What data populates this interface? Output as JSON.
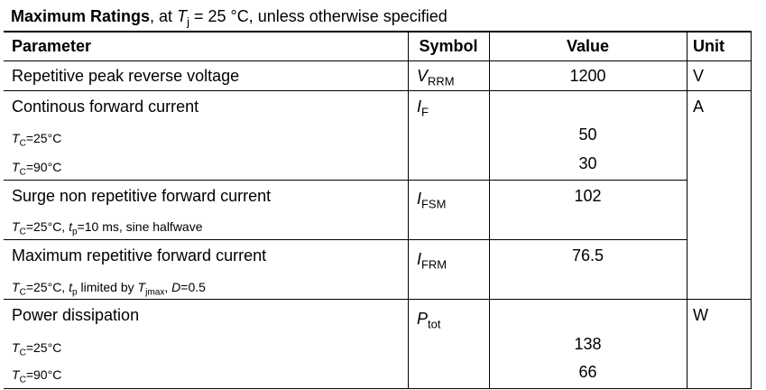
{
  "caption": {
    "bold": "Maximum Ratings",
    "comma": ",",
    "at": " at ",
    "tj_symbol": "T",
    "tj_sub": "j",
    "rest": " = 25 °C, unless otherwise specified"
  },
  "headers": {
    "parameter": "Parameter",
    "symbol": "Symbol",
    "value": "Value",
    "unit": "Unit"
  },
  "rows": [
    {
      "parameter": "Repetitive peak reverse voltage",
      "symbol": {
        "base": "V",
        "sub": "RRM"
      },
      "value": "1200",
      "unit": "V"
    },
    {
      "parameter": "Continous forward current",
      "symbol": {
        "base": "I",
        "sub": "F"
      },
      "unit": "A",
      "conditions": [
        {
          "t": "T",
          "sub": "C",
          "rest": "=25°C",
          "value": "50"
        },
        {
          "t": "T",
          "sub": "C",
          "rest": "=90°C",
          "value": "30"
        }
      ]
    },
    {
      "parameter": "Surge non repetitive forward current",
      "symbol": {
        "base": "I",
        "sub": "FSM"
      },
      "value": "102",
      "condition": {
        "t": "T",
        "sub": "C",
        "mid": "=25°C, ",
        "t2": "t",
        "sub2": "p",
        "rest": "=10 ms, sine halfwave"
      }
    },
    {
      "parameter": "Maximum repetitive forward current",
      "symbol": {
        "base": "I",
        "sub": "FRM"
      },
      "value": "76.5",
      "condition": {
        "t": "T",
        "sub": "C",
        "mid": "=25°C, ",
        "t2": "t",
        "sub2": "p",
        "mid2": " limited by ",
        "t3": "T",
        "sub3": "jmax",
        "mid3": ", ",
        "d": "D",
        "rest": "=0.5"
      }
    },
    {
      "parameter": "Power dissipation",
      "symbol": {
        "base": "P",
        "sub": "tot"
      },
      "unit": "W",
      "conditions": [
        {
          "t": "T",
          "sub": "C",
          "rest": "=25°C",
          "value": "138"
        },
        {
          "t": "T",
          "sub": "C",
          "rest": "=90°C",
          "value": "66"
        }
      ]
    }
  ]
}
